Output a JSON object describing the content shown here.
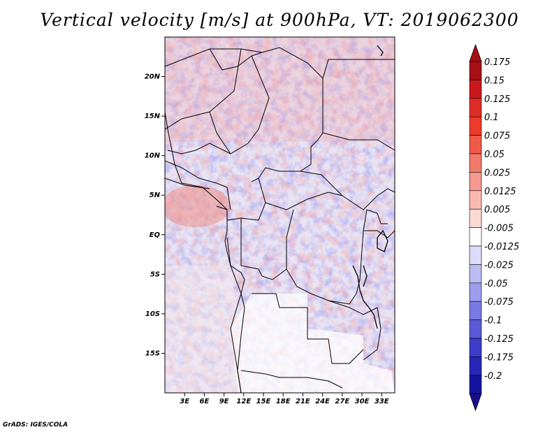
{
  "title": "Vertical velocity [m/s] at 900hPa, VT: 2019062300",
  "footer": "GrADS: IGES/COLA",
  "map": {
    "lat_labels": [
      "20N",
      "15N",
      "10N",
      "5N",
      "EQ",
      "5S",
      "10S",
      "15S"
    ],
    "lat_values": [
      20,
      15,
      10,
      5,
      0,
      -5,
      -10,
      -15
    ],
    "lon_labels": [
      "3E",
      "6E",
      "9E",
      "12E",
      "15E",
      "18E",
      "21E",
      "24E",
      "27E",
      "30E",
      "33E"
    ],
    "lon_values": [
      3,
      6,
      9,
      12,
      15,
      18,
      21,
      24,
      27,
      30,
      33
    ],
    "lon_range": [
      0,
      35
    ],
    "lat_range": [
      -20,
      25
    ],
    "variable": "vertical velocity",
    "units": "m/s",
    "level": "900hPa"
  },
  "colorbar": {
    "labels": [
      "0.175",
      "0.15",
      "0.125",
      "0.1",
      "0.075",
      "0.05",
      "0.025",
      "0.0125",
      "0.005",
      "-0.005",
      "-0.0125",
      "-0.025",
      "-0.05",
      "-0.075",
      "-0.1",
      "-0.125",
      "-0.175",
      "-0.2"
    ],
    "colors": [
      "#a50f15",
      "#cb181d",
      "#de2d26",
      "#ef3b2c",
      "#f05a4a",
      "#f27a6b",
      "#f4998d",
      "#f8bab0",
      "#fcdad4",
      "#ffffff",
      "#dcdcf8",
      "#bcbcf2",
      "#9c9cec",
      "#7a7ae3",
      "#5a5ad8",
      "#3d3dcc",
      "#2626b8",
      "#14149e"
    ],
    "top_color": "#a50f15",
    "bottom_color": "#1a0e8c"
  }
}
